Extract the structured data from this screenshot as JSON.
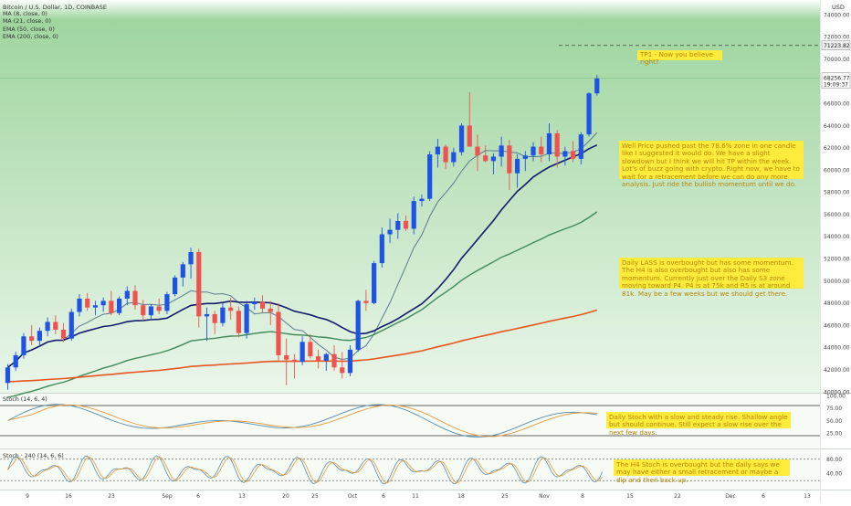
{
  "symbol_title": "Bitcoin / U.S. Dollar, 1D, COINBASE",
  "legend": [
    "MA (8, close, 0)",
    "MA (21, close, 0)",
    "EMA (50, close, 0)",
    "EMA (200, close, 0)"
  ],
  "currency": "USD",
  "price_ticks": [
    "74000.00",
    "72000.00",
    "70000.00",
    "68000.00",
    "66000.00",
    "64000.00",
    "62000.00",
    "60000.00",
    "58000.00",
    "56000.00",
    "54000.00",
    "52000.00",
    "50000.00",
    "48000.00",
    "46000.00",
    "44000.00",
    "42000.00",
    "40000.00"
  ],
  "tp_price_label": "71223.82",
  "last_price_label": "68256.77",
  "countdown_label": "19:09:37",
  "stoch_label": "Stoch (14, 6, 4)",
  "stoch_ticks": [
    "100.00",
    "75.00",
    "50.00",
    "25.00"
  ],
  "stoch240_label": "Stoch · 240 (14, 6, 6)",
  "stoch240_ticks": [
    "80.00",
    "40.00"
  ],
  "date_labels": [
    "9",
    "16",
    "23",
    "Sep",
    "6",
    "13",
    "20",
    "25",
    "Oct",
    "6",
    "11",
    "18",
    "25",
    "Nov",
    "8",
    "15",
    "22",
    "Dec",
    "6",
    "13"
  ],
  "notes": {
    "tp1": "TP1 - Now you believe right?",
    "note1": "Well Price pushed past the 78.6% zone in one candle like I suggested it would do. We have a slight slowdown but I think we will hit TP within the week. Lot's of buzz going with crypto. Right now, we have to wait for a retracement before we can do any more analysis. Just ride the bullish momentum until we do.",
    "note2": "Daily LASS is overbought but has some momentum. The H4 is also overbought but also has some momentum. Currently just over the Daily S3 zone moving toward P4. P4 is at 75k and R5 is at around 81k. May be a few weeks but we should get there.",
    "note3": "Daily Stoch with a slow and steady rise. Shallow angle but should continue. Still expect a slow rise over the next few days.",
    "note4": "The H4 Stoch is overbought but the daily says we may have either a small retracement or maybe a dip and then back up."
  },
  "colors": {
    "up": "#1e53e5",
    "down": "#ef5350",
    "ma8": "#5b7b8f",
    "ma21": "#131c6b",
    "ema50": "#3f8a5a",
    "ema200": "#e8551f",
    "stochK": "#5b8ba8",
    "stochD": "#e39a3b",
    "bgTop": "#8fcf8f",
    "bgBottom": "#eef8ee",
    "note": "#ffeb3b",
    "noteText": "#b8860b"
  },
  "chart_data": {
    "type": "candlestick",
    "symbol": "Bitcoin / U.S. Dollar",
    "timeframe": "1D",
    "ylim": [
      40000,
      75000
    ],
    "take_profit": 71223.82,
    "last_price": 68256.77,
    "ohlc": [
      [
        40800,
        42500,
        40200,
        42200
      ],
      [
        42200,
        43600,
        41900,
        43300
      ],
      [
        43300,
        45300,
        43000,
        45000
      ],
      [
        45000,
        46000,
        44200,
        44600
      ],
      [
        44600,
        45800,
        44100,
        45500
      ],
      [
        45500,
        46700,
        45000,
        46300
      ],
      [
        46300,
        46900,
        45200,
        45600
      ],
      [
        45600,
        46200,
        44500,
        44800
      ],
      [
        44800,
        47500,
        44600,
        47200
      ],
      [
        47200,
        48800,
        46800,
        48400
      ],
      [
        48400,
        48900,
        47300,
        47600
      ],
      [
        47600,
        48200,
        46900,
        47800
      ],
      [
        47800,
        48500,
        47200,
        48200
      ],
      [
        48200,
        49100,
        46900,
        47100
      ],
      [
        47100,
        48600,
        46900,
        48400
      ],
      [
        48400,
        49500,
        47800,
        49100
      ],
      [
        49100,
        49600,
        47400,
        47800
      ],
      [
        47800,
        48300,
        46400,
        46900
      ],
      [
        46900,
        47900,
        46600,
        47700
      ],
      [
        47700,
        48400,
        47000,
        47300
      ],
      [
        47300,
        49000,
        47000,
        48800
      ],
      [
        48800,
        50500,
        48600,
        50300
      ],
      [
        50300,
        51700,
        49500,
        51500
      ],
      [
        51500,
        53000,
        50200,
        52600
      ],
      [
        52600,
        52900,
        45800,
        46800
      ],
      [
        46800,
        47600,
        44600,
        47000
      ],
      [
        47000,
        47300,
        45200,
        46200
      ],
      [
        46200,
        48000,
        45900,
        47600
      ],
      [
        47600,
        48500,
        46500,
        47300
      ],
      [
        47300,
        47700,
        44900,
        45300
      ],
      [
        45300,
        48200,
        44800,
        47900
      ],
      [
        47900,
        48500,
        47400,
        48100
      ],
      [
        48100,
        48700,
        47100,
        47500
      ],
      [
        47500,
        48200,
        46000,
        47200
      ],
      [
        47200,
        48000,
        42800,
        43300
      ],
      [
        43300,
        44800,
        40600,
        42900
      ],
      [
        42900,
        43400,
        41200,
        42700
      ],
      [
        42700,
        45000,
        42400,
        44500
      ],
      [
        44500,
        45200,
        43000,
        43200
      ],
      [
        43200,
        43800,
        42100,
        42800
      ],
      [
        42800,
        43500,
        41900,
        43400
      ],
      [
        43400,
        44200,
        41900,
        42200
      ],
      [
        42200,
        43600,
        41200,
        41700
      ],
      [
        41700,
        44200,
        41400,
        43800
      ],
      [
        43800,
        48300,
        43600,
        48200
      ],
      [
        48200,
        49200,
        47300,
        48000
      ],
      [
        48000,
        51800,
        47900,
        51600
      ],
      [
        51600,
        54800,
        51200,
        54200
      ],
      [
        54200,
        55600,
        53400,
        54600
      ],
      [
        54600,
        56100,
        53800,
        55400
      ],
      [
        55400,
        55900,
        54500,
        54700
      ],
      [
        54700,
        57600,
        54200,
        57200
      ],
      [
        57200,
        57800,
        56700,
        57400
      ],
      [
        57400,
        61700,
        57200,
        61400
      ],
      [
        61400,
        62800,
        60200,
        62100
      ],
      [
        62100,
        62300,
        60100,
        60700
      ],
      [
        60700,
        62000,
        60300,
        61600
      ],
      [
        61600,
        64200,
        61300,
        64000
      ],
      [
        64000,
        67000,
        62400,
        62100
      ],
      [
        62100,
        63200,
        59900,
        61300
      ],
      [
        61300,
        62200,
        60700,
        60800
      ],
      [
        60800,
        61500,
        59600,
        61200
      ],
      [
        61200,
        63000,
        60300,
        62200
      ],
      [
        62200,
        62700,
        58200,
        59700
      ],
      [
        59700,
        61400,
        58400,
        61000
      ],
      [
        61000,
        61700,
        59900,
        61300
      ],
      [
        61300,
        62500,
        60800,
        62100
      ],
      [
        62100,
        63000,
        60700,
        61400
      ],
      [
        61400,
        64200,
        60800,
        63300
      ],
      [
        63300,
        63600,
        60200,
        61200
      ],
      [
        61200,
        62100,
        60400,
        61700
      ],
      [
        61700,
        62600,
        60700,
        61000
      ],
      [
        61000,
        63400,
        60500,
        63200
      ],
      [
        63200,
        67000,
        63000,
        66900
      ],
      [
        66900,
        68560,
        66700,
        68256.77
      ]
    ],
    "series": [
      {
        "name": "MA (8, close, 0)",
        "first": 46000,
        "last": 63900
      },
      {
        "name": "MA (21, close, 0)",
        "first": 44800,
        "last": 63100
      },
      {
        "name": "EMA (50, close, 0)",
        "first": 39400,
        "last": 57800
      },
      {
        "name": "EMA (200, close, 0)",
        "first": 40600,
        "last": 47800
      }
    ],
    "stoch": {
      "name": "Stoch (14, 6, 4)",
      "ylim": [
        0,
        100
      ]
    },
    "stoch240": {
      "name": "Stoch · 240 (14, 6, 6)",
      "ylim": [
        0,
        100
      ]
    }
  }
}
